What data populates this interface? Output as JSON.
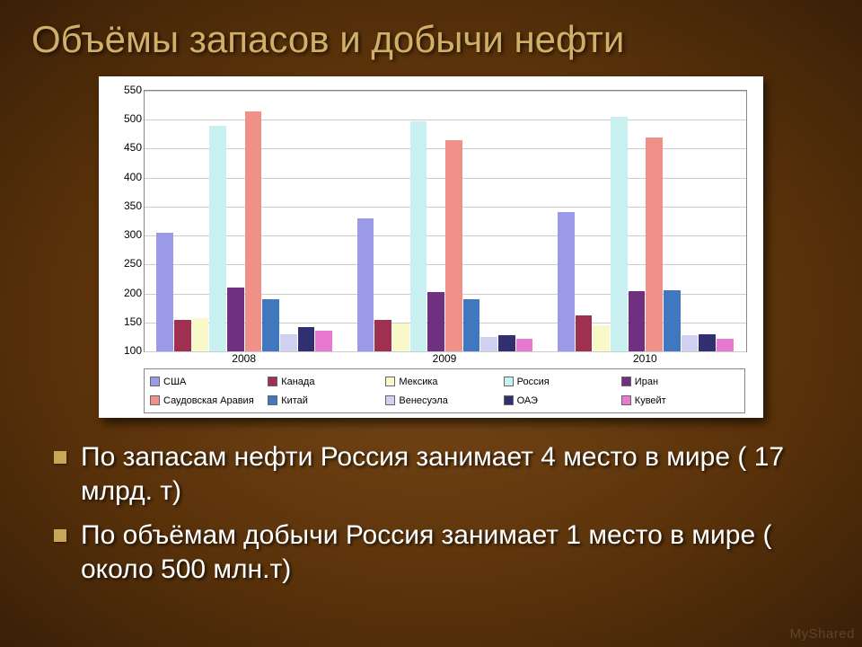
{
  "slide": {
    "title": "Объёмы запасов и добычи нефти",
    "background_center": "#7a4a1a",
    "background_edge": "#3a2008",
    "title_color": "#d0b068",
    "title_fontsize": 42
  },
  "chart": {
    "type": "bar",
    "background_color": "#ffffff",
    "grid_color": "#cccccc",
    "border_color": "#888888",
    "ylim": [
      100,
      550
    ],
    "ytick_step": 50,
    "yticks": [
      100,
      150,
      200,
      250,
      300,
      350,
      400,
      450,
      500,
      550
    ],
    "label_fontsize": 12,
    "categories": [
      "2008",
      "2009",
      "2010"
    ],
    "bar_width_ratio": 0.07,
    "series": [
      {
        "name": "США",
        "color": "#9a9ae8",
        "values": [
          305,
          330,
          340
        ]
      },
      {
        "name": "Канада",
        "color": "#a03050",
        "values": [
          155,
          155,
          162
        ]
      },
      {
        "name": "Мексика",
        "color": "#f8f8c8",
        "values": [
          158,
          148,
          145
        ]
      },
      {
        "name": "Россия",
        "color": "#c8f0f0",
        "values": [
          490,
          497,
          505
        ]
      },
      {
        "name": "Иран",
        "color": "#703080",
        "values": [
          210,
          203,
          204
        ]
      },
      {
        "name": "Саудовская Аравия",
        "color": "#f09088",
        "values": [
          515,
          465,
          470
        ]
      },
      {
        "name": "Китай",
        "color": "#4078c0",
        "values": [
          190,
          190,
          205
        ]
      },
      {
        "name": "Венесуэла",
        "color": "#d0d0f0",
        "values": [
          130,
          125,
          128
        ]
      },
      {
        "name": "ОАЭ",
        "color": "#303070",
        "values": [
          142,
          128,
          130
        ]
      },
      {
        "name": "Кувейт",
        "color": "#e878d0",
        "values": [
          136,
          122,
          122
        ]
      }
    ]
  },
  "bullets": [
    "По запасам нефти Россия занимает 4 место в мире ( 17 млрд. т)",
    "По объёмам добычи Россия занимает 1 место в мире ( около 500 млн.т)"
  ],
  "bullet_style": {
    "marker_color": "#c8a858",
    "text_color": "#ffffff",
    "fontsize": 30
  },
  "watermark": "MyShared"
}
